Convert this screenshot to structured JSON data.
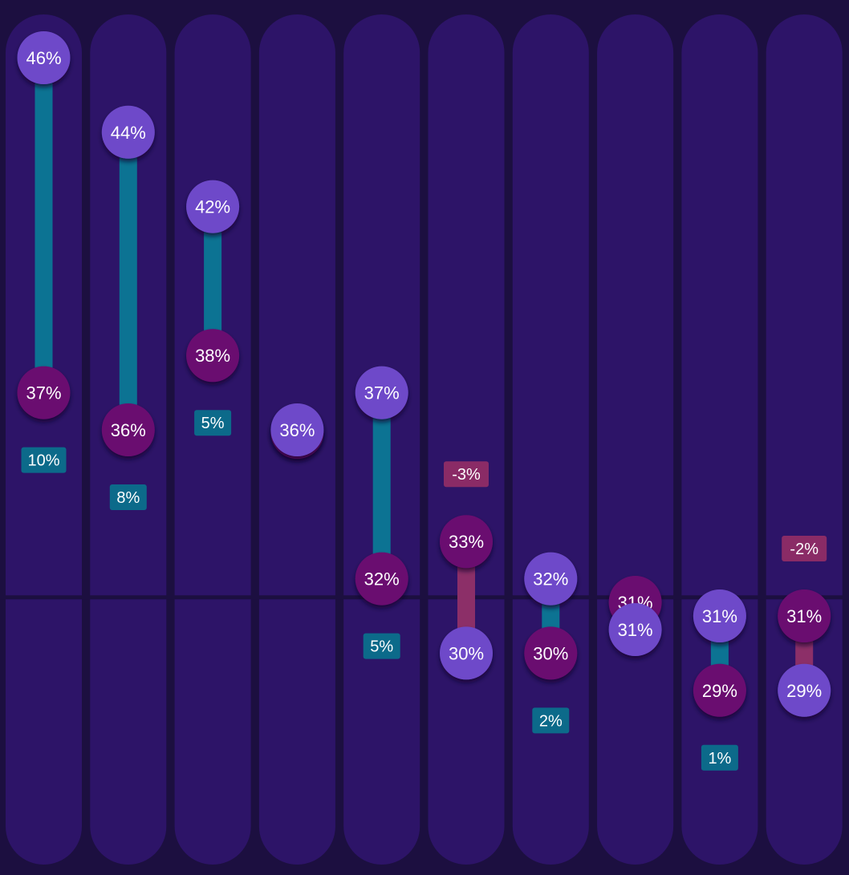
{
  "chart_data": {
    "type": "dumbbell",
    "title": "",
    "xlabel": "",
    "ylabel": "",
    "ylim": [
      18,
      47
    ],
    "grid": false,
    "legend": "none",
    "reference_line": 31.5,
    "columns": [
      {
        "top": 46,
        "bottom": 37,
        "top_label": "46%",
        "bottom_label": "37%",
        "change": "10%",
        "direction": "up"
      },
      {
        "top": 44,
        "bottom": 36,
        "top_label": "44%",
        "bottom_label": "36%",
        "change": "8%",
        "direction": "up"
      },
      {
        "top": 42,
        "bottom": 38,
        "top_label": "42%",
        "bottom_label": "38%",
        "change": "5%",
        "direction": "up"
      },
      {
        "top": 36,
        "bottom": 36,
        "top_label": "36%",
        "bottom_label": "",
        "change": "",
        "direction": "flat"
      },
      {
        "top": 37,
        "bottom": 32,
        "top_label": "37%",
        "bottom_label": "32%",
        "change": "5%",
        "direction": "up"
      },
      {
        "top": 33,
        "bottom": 30,
        "top_label": "33%",
        "bottom_label": "30%",
        "change": "-3%",
        "direction": "down"
      },
      {
        "top": 32,
        "bottom": 30,
        "top_label": "32%",
        "bottom_label": "30%",
        "change": "2%",
        "direction": "up"
      },
      {
        "top": 31,
        "bottom": 31,
        "top_label": "31%",
        "bottom_label": "31%",
        "change": "",
        "direction": "overlap-down"
      },
      {
        "top": 31,
        "bottom": 29,
        "top_label": "31%",
        "bottom_label": "29%",
        "change": "1%",
        "direction": "up"
      },
      {
        "top": 31,
        "bottom": 29,
        "top_label": "31%",
        "bottom_label": "29%",
        "change": "-2%",
        "direction": "down"
      }
    ],
    "colors": {
      "background": "#1c0f40",
      "column": "#2d1468",
      "reference_line": "#1c0f40",
      "circle_light": "#6e4ac9",
      "circle_dark": "#6b0c70",
      "bar_up": "#0c7393",
      "bar_down": "#8c2f68",
      "badge_up": "#0c6a8a",
      "badge_down": "#8a2b66",
      "text": "#ffffff"
    }
  }
}
